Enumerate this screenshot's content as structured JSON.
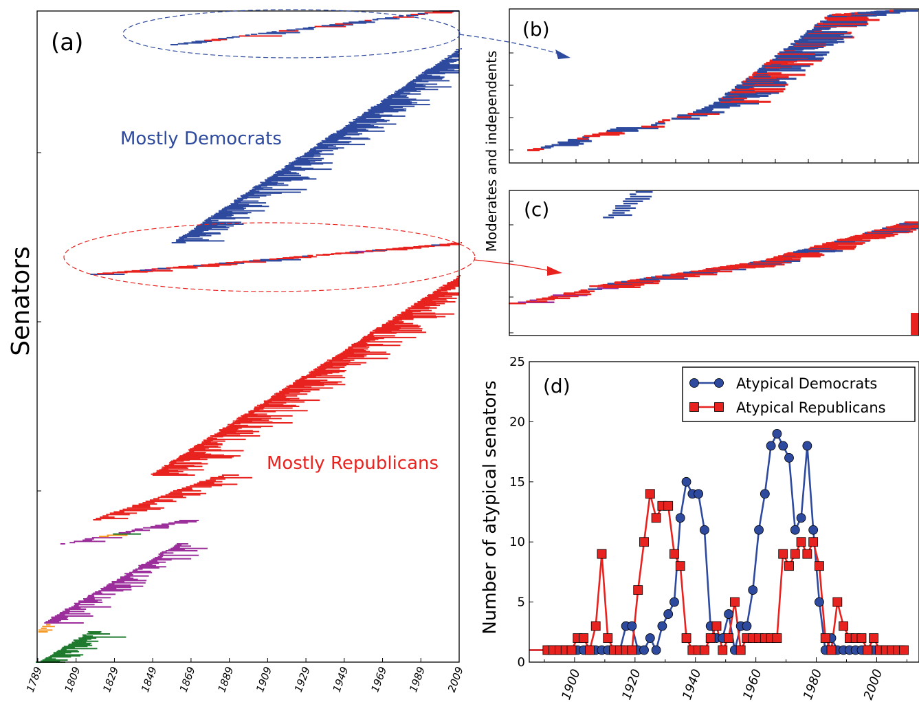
{
  "panels": {
    "a": {
      "label": "(a)",
      "ylabel": "Senators",
      "xticks": [
        "1789",
        "1809",
        "1829",
        "1849",
        "1869",
        "1889",
        "1909",
        "1929",
        "1949",
        "1969",
        "1989",
        "2009"
      ],
      "annotations": {
        "democrats": "Mostly Democrats",
        "republicans": "Mostly Republicans"
      }
    },
    "b": {
      "label": "(b)"
    },
    "c": {
      "label": "(c)"
    },
    "bc_ylabel": "Moderates and independents",
    "d": {
      "label": "(d)"
    }
  },
  "colors": {
    "democrat": "#2e4a9e",
    "republican": "#e8231f",
    "whig": "#9b2e9b",
    "federalist": "#1f7a2e",
    "other": "#f5961e",
    "dem_annotation": "#2e4a9e",
    "rep_annotation": "#e8231f"
  },
  "chart_data": {
    "type": "line",
    "ylabel": "Number of atypical senators",
    "xticks": [
      "1900",
      "1920",
      "1940",
      "1960",
      "1980",
      "2000"
    ],
    "yticks": [
      "0",
      "5",
      "10",
      "15",
      "20",
      "25"
    ],
    "xlim": [
      1885,
      2014
    ],
    "ylim": [
      0,
      25
    ],
    "series": [
      {
        "name": "Atypical Democrats",
        "marker": "circle",
        "color": "#2e4a9e",
        "x": [
          1880,
          1891,
          1893,
          1895,
          1897,
          1899,
          1901,
          1903,
          1905,
          1907,
          1909,
          1911,
          1913,
          1915,
          1917,
          1919,
          1921,
          1923,
          1925,
          1927,
          1929,
          1931,
          1933,
          1935,
          1937,
          1939,
          1941,
          1943,
          1945,
          1947,
          1949,
          1951,
          1953,
          1955,
          1957,
          1959,
          1961,
          1963,
          1965,
          1967,
          1969,
          1971,
          1973,
          1975,
          1977,
          1979,
          1981,
          1983,
          1985,
          1987,
          1989,
          1991,
          1993,
          1995,
          1997,
          1999,
          2001,
          2003,
          2005,
          2007,
          2009
        ],
        "y": [
          1,
          1,
          1,
          1,
          1,
          1,
          1,
          1,
          1,
          1,
          1,
          1,
          1,
          1,
          3,
          3,
          1,
          1,
          2,
          1,
          3,
          4,
          5,
          12,
          15,
          14,
          14,
          11,
          3,
          2,
          2,
          4,
          1,
          3,
          3,
          6,
          11,
          14,
          18,
          19,
          18,
          17,
          11,
          12,
          18,
          11,
          5,
          1,
          2,
          1,
          1,
          1,
          1,
          1,
          1,
          1,
          1,
          1,
          1,
          1,
          1
        ]
      },
      {
        "name": "Atypical Republicans",
        "marker": "square",
        "color": "#e8231f",
        "x": [
          1880,
          1891,
          1893,
          1895,
          1897,
          1899,
          1901,
          1903,
          1905,
          1907,
          1909,
          1911,
          1913,
          1915,
          1917,
          1919,
          1921,
          1923,
          1925,
          1927,
          1929,
          1931,
          1933,
          1935,
          1937,
          1939,
          1941,
          1943,
          1945,
          1947,
          1949,
          1951,
          1953,
          1955,
          1957,
          1959,
          1961,
          1963,
          1965,
          1967,
          1969,
          1971,
          1973,
          1975,
          1977,
          1979,
          1981,
          1983,
          1985,
          1987,
          1989,
          1991,
          1993,
          1995,
          1997,
          1999,
          2001,
          2003,
          2005,
          2007,
          2009
        ],
        "y": [
          1,
          1,
          1,
          1,
          1,
          1,
          2,
          2,
          1,
          3,
          9,
          2,
          1,
          1,
          1,
          1,
          6,
          10,
          14,
          12,
          13,
          13,
          9,
          8,
          2,
          1,
          1,
          1,
          2,
          3,
          1,
          2,
          5,
          1,
          2,
          2,
          2,
          2,
          2,
          2,
          9,
          8,
          9,
          10,
          9,
          10,
          8,
          2,
          1,
          5,
          3,
          2,
          2,
          2,
          1,
          2,
          1,
          1,
          1,
          1,
          1
        ]
      }
    ]
  }
}
